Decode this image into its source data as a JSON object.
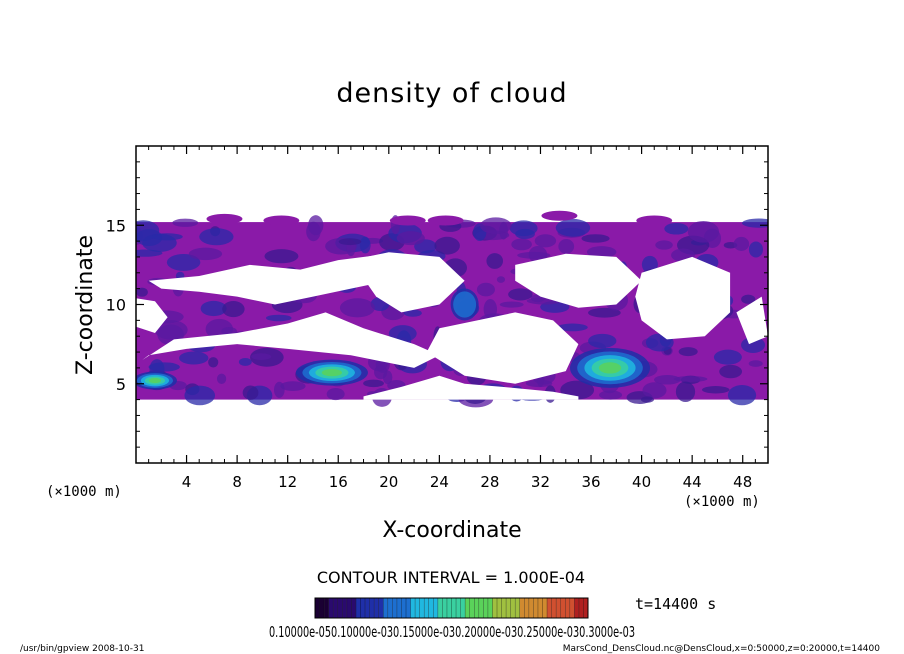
{
  "chart_data": {
    "type": "heatmap",
    "title": "density of cloud",
    "xlabel": "X-coordinate",
    "ylabel": "Z-coordinate",
    "x_unit": "(×1000 m)",
    "y_unit": "(×1000 m)",
    "xlim": [
      0,
      50
    ],
    "ylim": [
      0,
      20
    ],
    "x_ticks": [
      4,
      8,
      12,
      16,
      20,
      24,
      28,
      32,
      36,
      40,
      44,
      48
    ],
    "y_ticks": [
      5,
      10,
      15
    ],
    "grid": false,
    "contour_interval_text": "CONTOUR INTERVAL = 1.000E-04",
    "time_text": "t=14400 s",
    "colorbar_labels_text": "0.10000e-050.10000e-030.15000e-030.20000e-030.25000e-030.3000e-03",
    "colorbar_colors": [
      "#1a0033",
      "#2a0a6e",
      "#1f2fa8",
      "#1d6fd0",
      "#20b8e0",
      "#3ad0a0",
      "#5ad25a",
      "#a0c040",
      "#d08a30",
      "#d05030",
      "#b02020"
    ],
    "cloud_base_color": "#8a1aa8",
    "cloud_band_z": [
      4,
      15.2
    ],
    "clear_regions_description_omitted": true,
    "max_density_locations_x": [
      15.5,
      37.5
    ],
    "max_density_z": [
      5.7,
      6.2
    ]
  },
  "footer": {
    "left": "/usr/bin/gpview   2008-10-31",
    "right": "MarsCond_DensCloud.nc@DensCloud,x=0:50000,z=0:20000,t=14400"
  }
}
